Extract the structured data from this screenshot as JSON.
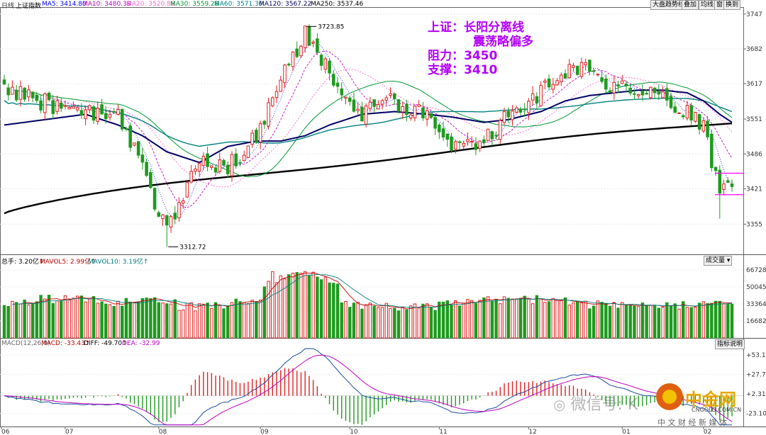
{
  "header": {
    "period": "日线",
    "index_name": "上证指数",
    "ma": [
      {
        "label": "MA5: 3414.80",
        "color": "#0000ff"
      },
      {
        "label": "MA10: 3480.38",
        "color": "#c000c0"
      },
      {
        "label": "MA20: 3520.88",
        "color": "#ff66cc"
      },
      {
        "label": "MA30: 3559.28",
        "color": "#009933"
      },
      {
        "label": "MA60: 3571.30",
        "color": "#008080"
      },
      {
        "label": "MA120: 3567.22",
        "color": "#000066"
      },
      {
        "label": "MA250: 3537.46",
        "color": "#000000"
      }
    ]
  },
  "toolbar": {
    "btn1": "大盘趋势线",
    "btn2": "叠加",
    "btn3": "均线",
    "btn4": "窗",
    "btn5": "换到"
  },
  "annotation": {
    "line1": "上证：长阳分离线",
    "line2": "震荡略偏多",
    "line3": "阻力：3450",
    "line4": "支撑：3410"
  },
  "volume_panel": {
    "vol": "总手: 3.20亿↑",
    "mavol5": "MAVOL5: 2.99亿↑",
    "mavol10": "MAVOL10: 3.19亿↑",
    "dropdown": "成交量 ▾"
  },
  "macd_panel": {
    "name": "MACD(12,26,9)",
    "macd": "MACD: -33.43↑",
    "diff": "DIFF: -49.70↑",
    "dea": "DEA: -32.99",
    "help": "指标说明"
  },
  "watermark": {
    "wechat": "微信号: K",
    "brand": "中金网",
    "site": "CNGOLD.COM.CN",
    "tagline": "中 文 财 经 新 媒 体"
  },
  "chart_data": {
    "type": "candlestick",
    "price_axis": {
      "ticks": [
        3747,
        3682,
        3617,
        3551,
        3486,
        3421,
        3355
      ],
      "range": [
        3300,
        3760
      ]
    },
    "volume_axis": {
      "ticks": [
        66728,
        50045,
        33364,
        16682
      ],
      "range": [
        0,
        75000
      ]
    },
    "macd_axis": {
      "ticks": [
        53.12,
        27.71,
        2.31,
        -23.1
      ],
      "tick_labels": [
        "+53.12",
        "+27.71",
        "+2.31",
        "-23.10"
      ],
      "range": [
        -40,
        65
      ]
    },
    "x_labels": [
      "06",
      "07",
      "08",
      "09",
      "10",
      "11",
      "12",
      "01",
      "02"
    ],
    "annotations": [
      {
        "label": "3723.85",
        "type": "high"
      },
      {
        "label": "3312.72",
        "type": "low"
      }
    ],
    "anchors": [
      [
        0,
        3605,
        3540,
        3600
      ],
      [
        20,
        3560,
        3560,
        3600
      ],
      [
        28,
        3560,
        3540,
        3590
      ],
      [
        34,
        3455,
        3520,
        3580
      ],
      [
        40,
        3340,
        3490,
        3570
      ],
      [
        44,
        3415,
        3480,
        3560
      ],
      [
        48,
        3470,
        3470,
        3555
      ],
      [
        55,
        3460,
        3500,
        3540
      ],
      [
        62,
        3520,
        3510,
        3545
      ],
      [
        68,
        3620,
        3510,
        3550
      ],
      [
        74,
        3715,
        3520,
        3555
      ],
      [
        80,
        3640,
        3540,
        3570
      ],
      [
        88,
        3560,
        3560,
        3580
      ],
      [
        96,
        3585,
        3565,
        3590
      ],
      [
        104,
        3555,
        3560,
        3595
      ],
      [
        110,
        3495,
        3555,
        3600
      ],
      [
        118,
        3515,
        3545,
        3610
      ],
      [
        124,
        3555,
        3550,
        3615
      ],
      [
        132,
        3600,
        3565,
        3620
      ],
      [
        138,
        3640,
        3585,
        3625
      ],
      [
        144,
        3640,
        3595,
        3628
      ],
      [
        150,
        3610,
        3600,
        3630
      ],
      [
        156,
        3600,
        3605,
        3633
      ],
      [
        162,
        3590,
        3605,
        3635
      ],
      [
        168,
        3560,
        3600,
        3637
      ],
      [
        172,
        3535,
        3585,
        3639
      ],
      [
        176,
        3410,
        3560,
        3641
      ],
      [
        179,
        3420,
        3545,
        3642
      ]
    ]
  }
}
